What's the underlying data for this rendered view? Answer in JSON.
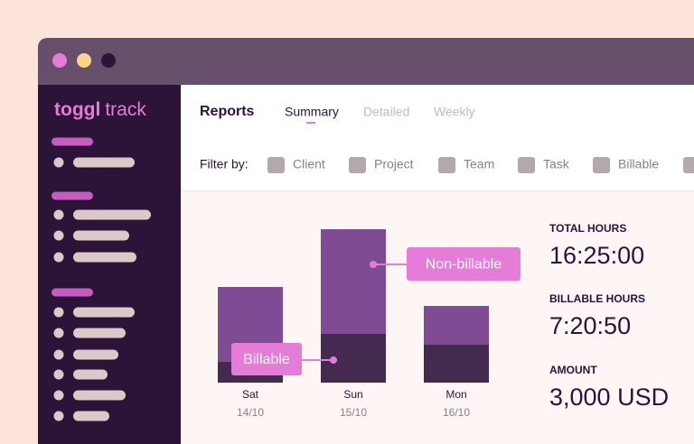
{
  "app": {
    "logo": {
      "brand": "toggl",
      "product": "track"
    }
  },
  "header": {
    "title": "Reports",
    "tabs": [
      "Summary",
      "Detailed",
      "Weekly"
    ],
    "active_tab": 0
  },
  "filters": {
    "label": "Filter by:",
    "items": [
      "Client",
      "Project",
      "Team",
      "Task",
      "Billable"
    ]
  },
  "chart_data": {
    "type": "bar",
    "stacked": true,
    "categories": [
      "Sat",
      "Sun",
      "Mon"
    ],
    "dates": [
      "14/10",
      "15/10",
      "16/10"
    ],
    "series": [
      {
        "name": "Billable",
        "color": "#432a4e",
        "values": [
          23,
          54,
          42
        ]
      },
      {
        "name": "Non-billable",
        "color": "#7f4b95",
        "values": [
          83,
          116,
          43
        ]
      }
    ],
    "ylim": [
      0,
      180
    ]
  },
  "stats": [
    {
      "label": "TOTAL HOURS",
      "value": "16:25:00"
    },
    {
      "label": "BILLABLE HOURS",
      "value": "7:20:50"
    },
    {
      "label": "AMOUNT",
      "value": "3,000 USD"
    }
  ]
}
